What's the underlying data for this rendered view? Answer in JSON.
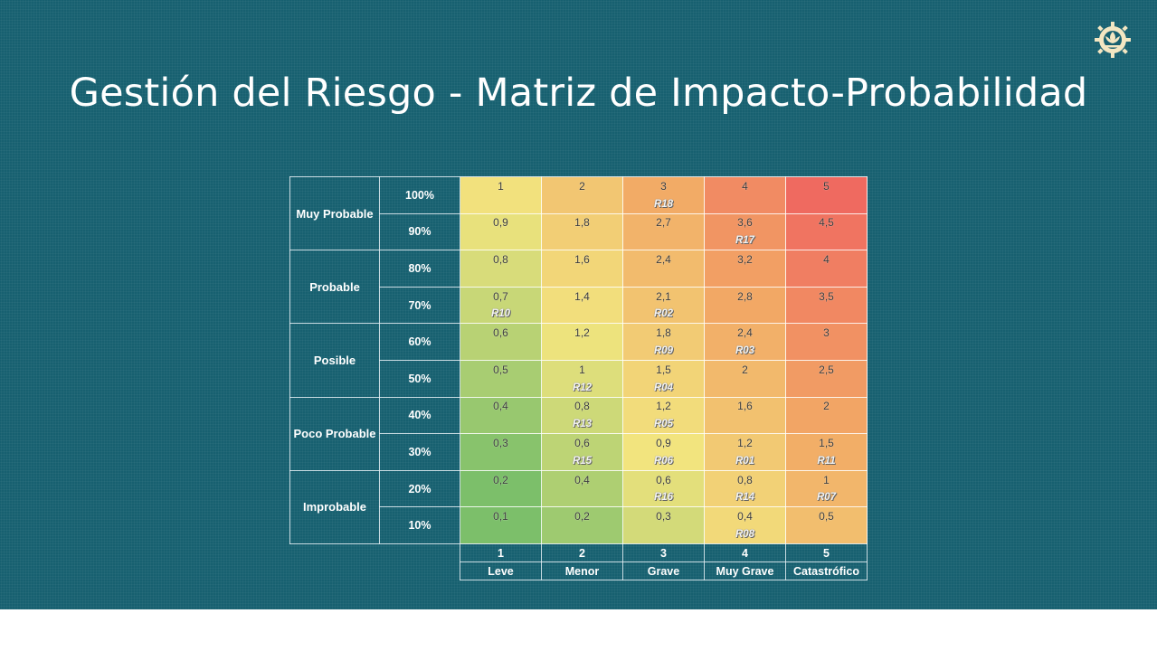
{
  "title": "Gestión del Riesgo - Matriz de Impacto-Probabilidad",
  "logo": {
    "icon": "leaf-gear-logo-icon"
  },
  "matrix": {
    "categories": [
      {
        "label": "Muy Probable",
        "levels": [
          "100%",
          "90%"
        ]
      },
      {
        "label": "Probable",
        "levels": [
          "80%",
          "70%"
        ]
      },
      {
        "label": "Posible",
        "levels": [
          "60%",
          "50%"
        ]
      },
      {
        "label": "Poco Probable",
        "levels": [
          "40%",
          "30%"
        ]
      },
      {
        "label": "Improbable",
        "levels": [
          "20%",
          "10%"
        ]
      }
    ],
    "rows": [
      {
        "values": [
          "1",
          "2",
          "3",
          "4",
          "5"
        ],
        "risks": [
          "",
          "",
          "R18",
          "",
          ""
        ]
      },
      {
        "values": [
          "0,9",
          "1,8",
          "2,7",
          "3,6",
          "4,5"
        ],
        "risks": [
          "",
          "",
          "",
          "R17",
          ""
        ]
      },
      {
        "values": [
          "0,8",
          "1,6",
          "2,4",
          "3,2",
          "4"
        ],
        "risks": [
          "",
          "",
          "",
          "",
          ""
        ]
      },
      {
        "values": [
          "0,7",
          "1,4",
          "2,1",
          "2,8",
          "3,5"
        ],
        "risks": [
          "R10",
          "",
          "R02",
          "",
          ""
        ]
      },
      {
        "values": [
          "0,6",
          "1,2",
          "1,8",
          "2,4",
          "3"
        ],
        "risks": [
          "",
          "",
          "R09",
          "R03",
          ""
        ]
      },
      {
        "values": [
          "0,5",
          "1",
          "1,5",
          "2",
          "2,5"
        ],
        "risks": [
          "",
          "R12",
          "R04",
          "",
          ""
        ]
      },
      {
        "values": [
          "0,4",
          "0,8",
          "1,2",
          "1,6",
          "2"
        ],
        "risks": [
          "",
          "R13",
          "R05",
          "",
          ""
        ]
      },
      {
        "values": [
          "0,3",
          "0,6",
          "0,9",
          "1,2",
          "1,5"
        ],
        "risks": [
          "",
          "R15",
          "R06",
          "R01",
          "R11"
        ]
      },
      {
        "values": [
          "0,2",
          "0,4",
          "0,6",
          "0,8",
          "1"
        ],
        "risks": [
          "",
          "",
          "R16",
          "R14",
          "R07"
        ]
      },
      {
        "values": [
          "0,1",
          "0,2",
          "0,3",
          "0,4",
          "0,5"
        ],
        "risks": [
          "",
          "",
          "",
          "R08",
          ""
        ]
      }
    ],
    "impact": {
      "numbers": [
        "1",
        "2",
        "3",
        "4",
        "5"
      ],
      "labels": [
        "Leve",
        "Menor",
        "Grave",
        "Muy Grave",
        "Catastrófico"
      ]
    },
    "colors": {
      "green": "#7cbf6a",
      "yellow": "#f2e47e",
      "orange": "#f2a865",
      "red": "#ef5f5f"
    }
  }
}
